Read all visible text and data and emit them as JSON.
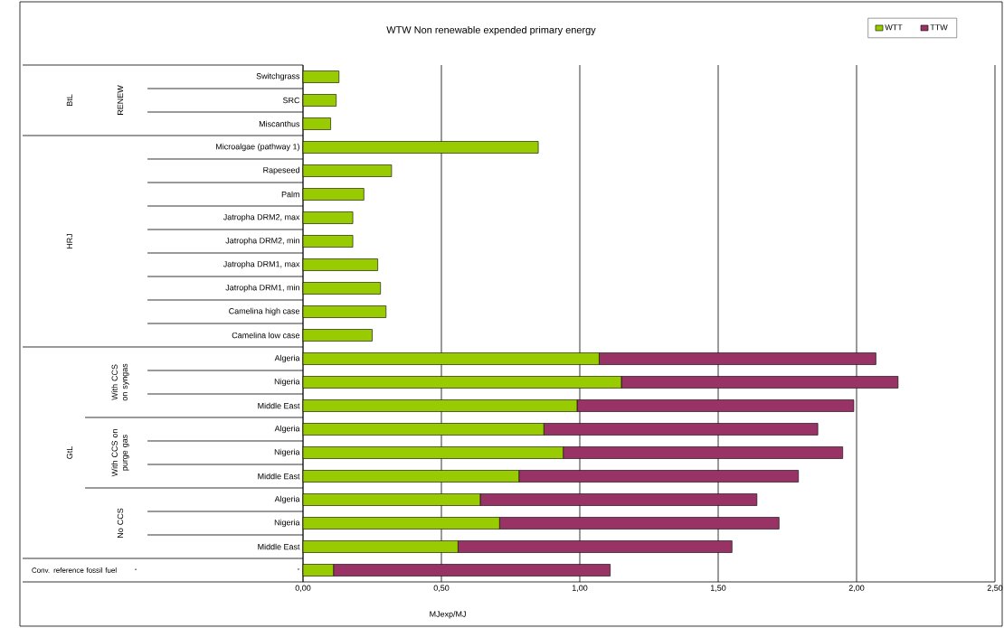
{
  "chart_data": {
    "type": "bar",
    "orientation": "horizontal",
    "stacked": true,
    "title": "WTW Non renewable expended primary energy",
    "xlabel": "MJexp/MJ",
    "categories": [
      "Switchgrass",
      "SRC",
      "Miscanthus",
      "Microalgae (pathway 1)",
      "Rapeseed",
      "Palm",
      "Jatropha DRM2, max",
      "Jatropha DRM2, min",
      "Jatropha DRM1, max",
      "Jatropha DRM1, min",
      "Camelina high case",
      "Camelina low case",
      "Algeria",
      "Nigeria",
      "Middle East",
      "Algeria",
      "Nigeria",
      "Middle East",
      "Algeria",
      "Nigeria",
      "Middle East",
      "-"
    ],
    "series": [
      {
        "name": "WTT",
        "color": "#99cc00",
        "values": [
          0.13,
          0.12,
          0.1,
          0.85,
          0.32,
          0.22,
          0.18,
          0.18,
          0.27,
          0.28,
          0.3,
          0.25,
          1.07,
          1.15,
          0.99,
          0.87,
          0.94,
          0.78,
          0.64,
          0.71,
          0.56,
          0.11
        ]
      },
      {
        "name": "TTW",
        "color": "#993366",
        "values": [
          null,
          null,
          null,
          null,
          null,
          null,
          null,
          null,
          null,
          null,
          null,
          null,
          1.0,
          1.0,
          1.0,
          0.99,
          1.01,
          1.01,
          1.0,
          1.01,
          0.99,
          1.0
        ]
      }
    ],
    "xlim": [
      0,
      2.5
    ],
    "xticks": [
      {
        "value": 0,
        "label": "0,00"
      },
      {
        "value": 0.5,
        "label": "0,50"
      },
      {
        "value": 1,
        "label": "1,00"
      },
      {
        "value": 1.5,
        "label": "1,50"
      },
      {
        "value": 2,
        "label": "2,00"
      },
      {
        "value": 2.5,
        "label": "2,50"
      }
    ],
    "grid": "x",
    "legend": "top right",
    "annotations": [
      "BtL",
      "RENEW",
      "HRJ",
      "GtL",
      "With CCS on syngas",
      "With CCS on purge gas",
      "No CCS",
      "Conv. reference fossil fuel",
      "-"
    ]
  }
}
